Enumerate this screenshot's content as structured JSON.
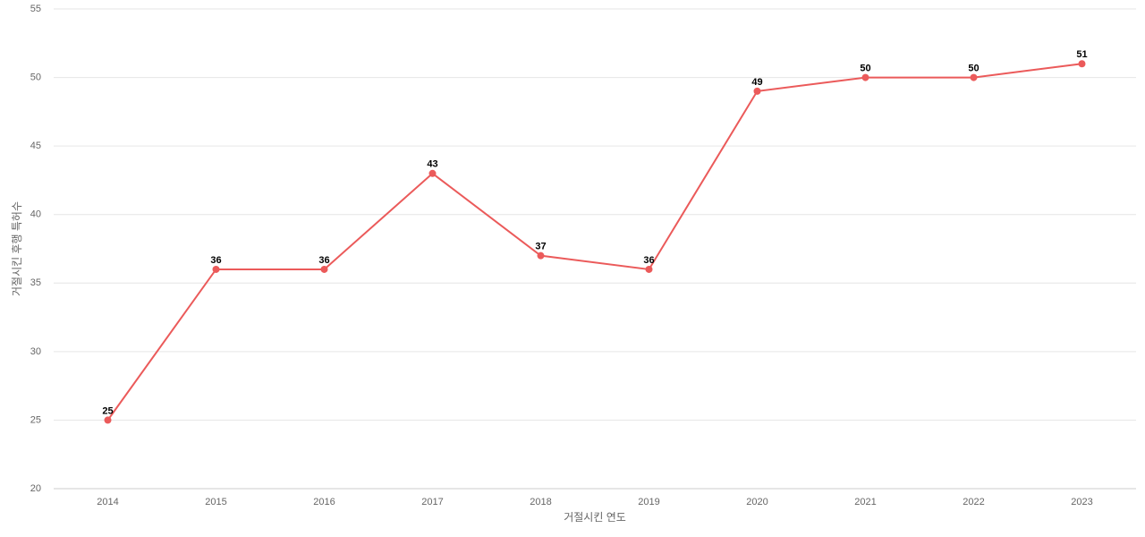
{
  "chart_data": {
    "type": "line",
    "x_label": "거절시킨 연도",
    "y_label": "거절시킨 후행 특허수",
    "categories": [
      "2014",
      "2015",
      "2016",
      "2017",
      "2018",
      "2019",
      "2020",
      "2021",
      "2022",
      "2023"
    ],
    "values": [
      25,
      36,
      36,
      43,
      37,
      36,
      49,
      50,
      50,
      51
    ],
    "color": "#eb5a5a",
    "ylim": [
      20,
      55
    ],
    "yticks": [
      20,
      25,
      30,
      35,
      40,
      45,
      50,
      55
    ],
    "grid": true
  }
}
